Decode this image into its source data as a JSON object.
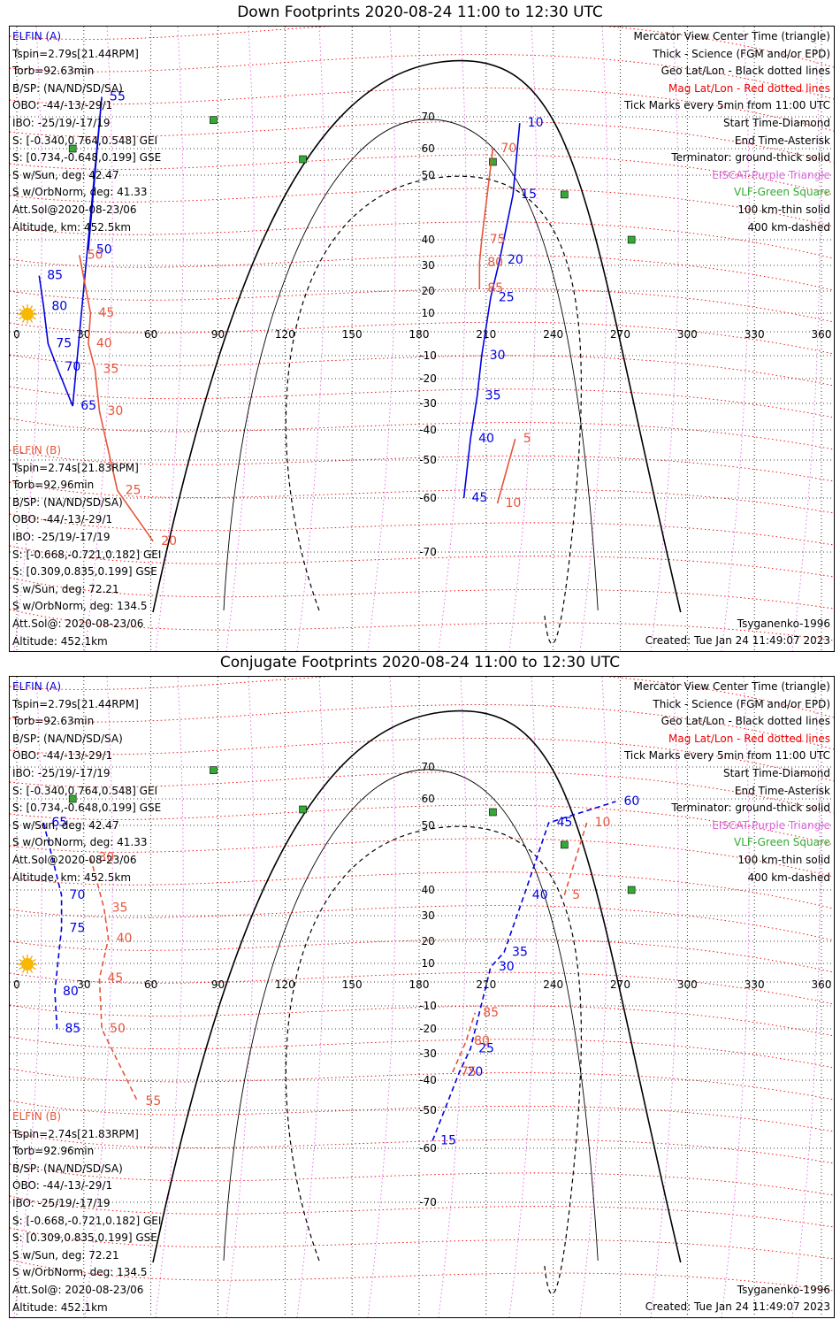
{
  "panels": [
    {
      "title": "Down Footprints 2020-08-24 11:00 to 12:30 UTC",
      "elfin_a": [
        "ELFIN (A)",
        "Tspin=2.79s[21.44RPM]",
        "Torb=92.63min",
        "B/SP: (NA/ND/SD/SA)",
        "OBO: -44/-13/-29/1",
        "IBO: -25/19/-17/19",
        "S: [-0.340,0.764,0.548] GEI",
        "S: [0.734,-0.648,0.199] GSE",
        "S w/Sun, deg: 42.47",
        "S w/OrbNorm, deg: 41.33",
        "Att.Sol@2020-08-23/06",
        "Altitude, km: 452.5km"
      ],
      "elfin_b": [
        "ELFIN (B)",
        "Tspin=2.74s[21.83RPM]",
        "Torb=92.96min",
        "B/SP: (NA/ND/SD/SA)",
        "OBO: -44/-13/-29/1",
        "IBO: -25/19/-17/19",
        "S: [-0.668,-0.721,0.182] GEI",
        "S: [0.309,0.835,0.199] GSE",
        "S w/Sun, deg: 72.21",
        "S w/OrbNorm, deg: 134.5",
        "Att.Sol@: 2020-08-23/06",
        "Altitude: 452.1km"
      ],
      "legend": [
        "Mercator View Center Time (triangle)",
        "Thick - Science (FGM and/or EPD)",
        "Geo Lat/Lon - Black dotted lines",
        "Mag Lat/Lon - Red dotted lines",
        "Tick Marks every 5min from 11:00 UTC",
        "Start Time-Diamond",
        "End Time-Asterisk",
        "Terminator: ground-thick solid",
        "EISCAT-Purple Triangle",
        "VLF-Green Square",
        "100 km-thin solid",
        "400 km-dashed"
      ],
      "footer_left": "Tsyganenko-1996",
      "footer_right": "Created: Tue Jan 24 11:49:07 2023"
    },
    {
      "title": "Conjugate Footprints 2020-08-24 11:00 to 12:30 UTC",
      "elfin_a": [
        "ELFIN (A)",
        "Tspin=2.79s[21.44RPM]",
        "Torb=92.63min",
        "B/SP: (NA/ND/SD/SA)",
        "OBO: -44/-13/-29/1",
        "IBO: -25/19/-17/19",
        "S: [-0.340,0.764,0.548] GEI",
        "S: [0.734,-0.648,0.199] GSE",
        "S w/Sun, deg: 42.47",
        "S w/OrbNorm, deg: 41.33",
        "Att.Sol@2020-08-23/06",
        "Altitude, km: 452.5km"
      ],
      "elfin_b": [
        "ELFIN (B)",
        "Tspin=2.74s[21.83RPM]",
        "Torb=92.96min",
        "B/SP: (NA/ND/SD/SA)",
        "OBO: -44/-13/-29/1",
        "IBO: -25/19/-17/19",
        "S: [-0.668,-0.721,0.182] GEI",
        "S: [0.309,0.835,0.199] GSE",
        "S w/Sun, deg: 72.21",
        "S w/OrbNorm, deg: 134.5",
        "Att.Sol@: 2020-08-23/06",
        "Altitude: 452.1km"
      ],
      "legend": [
        "Mercator View Center Time (triangle)",
        "Thick - Science (FGM and/or EPD)",
        "Geo Lat/Lon - Black dotted lines",
        "Mag Lat/Lon - Red dotted lines",
        "Tick Marks every 5min from 11:00 UTC",
        "Start Time-Diamond",
        "End Time-Asterisk",
        "Terminator: ground-thick solid",
        "EISCAT-Purple Triangle",
        "VLF-Green Square",
        "100 km-thin solid",
        "400 km-dashed"
      ],
      "footer_left": "Tsyganenko-1996",
      "footer_right": "Created: Tue Jan 24 11:49:07 2023"
    }
  ],
  "colors": {
    "elfin_a": "#0000e0",
    "elfin_b": "#e8543a",
    "mag_grid": "#ee0000",
    "eiscat": "#dd66dd",
    "vlf": "#33aa33",
    "terminator": "#000000"
  },
  "chart_data": [
    {
      "type": "map",
      "projection": "mercator",
      "lon_ticks": [
        0,
        30,
        60,
        90,
        120,
        150,
        180,
        210,
        240,
        270,
        300,
        330,
        360
      ],
      "lat_ticks": [
        70,
        60,
        50,
        40,
        30,
        20,
        10,
        -10,
        -20,
        -30,
        -40,
        -50,
        -60,
        -70
      ],
      "vlf_stations": [
        [
          88,
          69
        ],
        [
          25,
          60
        ],
        [
          128,
          56
        ],
        [
          213,
          55
        ],
        [
          245,
          47
        ],
        [
          275,
          40
        ]
      ],
      "elfin_a_track": {
        "minute_ticks": [
          {
            "m": 10,
            "lon": 225,
            "lat": 68
          },
          {
            "m": 15,
            "lon": 222,
            "lat": 47
          },
          {
            "m": 20,
            "lon": 216,
            "lat": 32
          },
          {
            "m": 25,
            "lon": 212,
            "lat": 17
          },
          {
            "m": 30,
            "lon": 208,
            "lat": -10
          },
          {
            "m": 35,
            "lon": 206,
            "lat": -27
          },
          {
            "m": 40,
            "lon": 203,
            "lat": -43
          },
          {
            "m": 45,
            "lon": 200,
            "lat": -60
          },
          {
            "m": 50,
            "lon": 32,
            "lat": 36
          },
          {
            "m": 55,
            "lon": 38,
            "lat": 75
          },
          {
            "m": 65,
            "lon": 25,
            "lat": -31
          },
          {
            "m": 70,
            "lon": 18,
            "lat": -15
          },
          {
            "m": 75,
            "lon": 14,
            "lat": -5
          },
          {
            "m": 80,
            "lon": 12,
            "lat": 13
          },
          {
            "m": 85,
            "lon": 10,
            "lat": 26
          }
        ]
      },
      "elfin_b_track": {
        "minute_ticks": [
          {
            "m": 5,
            "lon": 223,
            "lat": -43
          },
          {
            "m": 10,
            "lon": 215,
            "lat": -61
          },
          {
            "m": 20,
            "lon": 61,
            "lat": -68
          },
          {
            "m": 25,
            "lon": 45,
            "lat": -58
          },
          {
            "m": 30,
            "lon": 37,
            "lat": -33
          },
          {
            "m": 35,
            "lon": 35,
            "lat": -16
          },
          {
            "m": 40,
            "lon": 32,
            "lat": -5
          },
          {
            "m": 45,
            "lon": 33,
            "lat": 10
          },
          {
            "m": 50,
            "lon": 28,
            "lat": 34
          },
          {
            "m": 70,
            "lon": 213,
            "lat": 60
          },
          {
            "m": 75,
            "lon": 208,
            "lat": 40
          },
          {
            "m": 80,
            "lon": 207,
            "lat": 31
          },
          {
            "m": 85,
            "lon": 207,
            "lat": 21
          }
        ]
      }
    },
    {
      "type": "map",
      "projection": "mercator",
      "lon_ticks": [
        0,
        30,
        60,
        90,
        120,
        150,
        180,
        210,
        240,
        270,
        300,
        330,
        360
      ],
      "lat_ticks": [
        70,
        60,
        50,
        40,
        30,
        20,
        10,
        -10,
        -20,
        -30,
        -40,
        -50,
        -60,
        -70
      ],
      "vlf_stations": [
        [
          88,
          69
        ],
        [
          25,
          60
        ],
        [
          128,
          56
        ],
        [
          213,
          55
        ],
        [
          245,
          47
        ],
        [
          275,
          40
        ]
      ],
      "elfin_a_track": {
        "minute_ticks": [
          {
            "m": 15,
            "lon": 186,
            "lat": -58
          },
          {
            "m": 20,
            "lon": 198,
            "lat": -37
          },
          {
            "m": 25,
            "lon": 203,
            "lat": -28
          },
          {
            "m": 30,
            "lon": 212,
            "lat": 8
          },
          {
            "m": 35,
            "lon": 218,
            "lat": 15
          },
          {
            "m": 40,
            "lon": 227,
            "lat": 38
          },
          {
            "m": 45,
            "lon": 238,
            "lat": 51
          },
          {
            "m": 60,
            "lon": 268,
            "lat": 59
          },
          {
            "m": 65,
            "lon": 12,
            "lat": 51
          },
          {
            "m": 70,
            "lon": 20,
            "lat": 38
          },
          {
            "m": 75,
            "lon": 20,
            "lat": 25
          },
          {
            "m": 80,
            "lon": 17,
            "lat": -4
          },
          {
            "m": 85,
            "lon": 18,
            "lat": -20
          }
        ]
      },
      "elfin_b_track": {
        "minute_ticks": [
          {
            "m": 5,
            "lon": 245,
            "lat": 38
          },
          {
            "m": 10,
            "lon": 255,
            "lat": 51
          },
          {
            "m": 30,
            "lon": 33,
            "lat": 45
          },
          {
            "m": 35,
            "lon": 39,
            "lat": 33
          },
          {
            "m": 40,
            "lon": 41,
            "lat": 21
          },
          {
            "m": 45,
            "lon": 37,
            "lat": 2
          },
          {
            "m": 50,
            "lon": 38,
            "lat": -20
          },
          {
            "m": 55,
            "lon": 54,
            "lat": -47
          },
          {
            "m": 75,
            "lon": 195,
            "lat": -37
          },
          {
            "m": 80,
            "lon": 201,
            "lat": -25
          },
          {
            "m": 85,
            "lon": 205,
            "lat": -13
          }
        ]
      }
    }
  ]
}
